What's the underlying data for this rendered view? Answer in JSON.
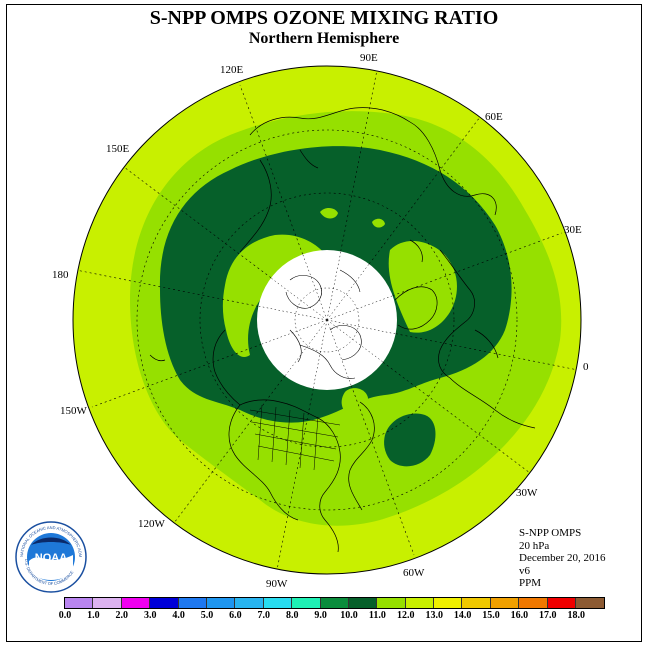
{
  "title": "S-NPP OMPS OZONE MIXING RATIO",
  "subtitle": "Northern Hemisphere",
  "longitude_labels": {
    "lon_90e": "90E",
    "lon_60e": "60E",
    "lon_30e": "30E",
    "lon_0": "0",
    "lon_30w": "30W",
    "lon_60w": "60W",
    "lon_90w": "90W",
    "lon_120w": "120W",
    "lon_150w": "150W",
    "lon_180": "180",
    "lon_150e": "150E",
    "lon_120e": "120E"
  },
  "info": {
    "instrument": "S-NPP OMPS",
    "level": "20 hPa",
    "date": "December 20, 2016",
    "version": "v6",
    "units": "PPM"
  },
  "logo": {
    "text": "NOAA",
    "ring_text": "NATIONAL OCEANIC AND ATMOSPHERIC ADMINISTRATION",
    "ring_text_bottom": "U.S. DEPARTMENT OF COMMERCE"
  },
  "colorbar": {
    "colors": [
      "#b985f0",
      "#dcb2f0",
      "#f000f0",
      "#0000d8",
      "#1e78f0",
      "#1e96f0",
      "#28b4f0",
      "#28dcf0",
      "#1ef0b4",
      "#0a8c3c",
      "#06602a",
      "#96e000",
      "#c8f000",
      "#f0f000",
      "#f0c800",
      "#f0a000",
      "#f07800",
      "#f00000",
      "#8c5a32"
    ],
    "tick_labels": [
      "0.0",
      "1.0",
      "2.0",
      "3.0",
      "4.0",
      "5.0",
      "6.0",
      "7.0",
      "8.0",
      "9.0",
      "10.0",
      "11.0",
      "12.0",
      "13.0",
      "14.0",
      "15.0",
      "16.0",
      "17.0",
      "18.0"
    ]
  },
  "map_colors": {
    "level_11_12": "#c8f000",
    "level_10_11": "#96e000",
    "level_9_10": "#06602a",
    "polar_night": "#ffffff"
  }
}
